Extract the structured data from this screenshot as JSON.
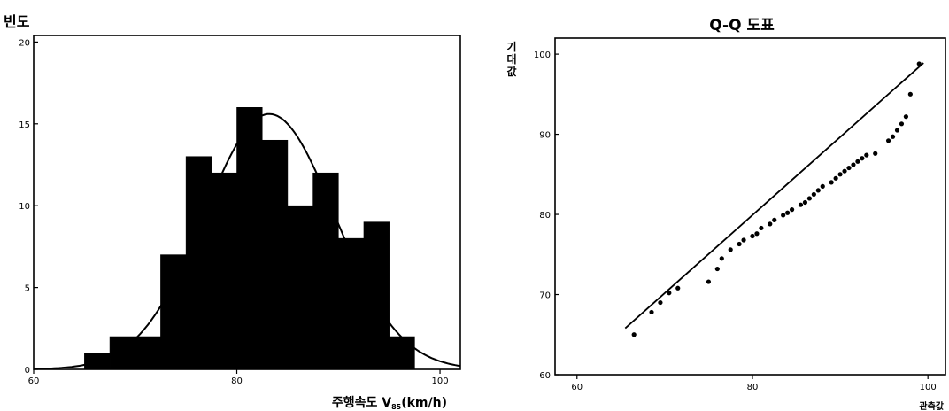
{
  "chart_data": [
    {
      "type": "bar",
      "ylabel": "빈도",
      "xlabel_main": "주행속도 V",
      "xlabel_sub": "85",
      "xlabel_unit": "(km/h)",
      "xlim": [
        60,
        102
      ],
      "ylim": [
        0,
        20.4
      ],
      "xticks": [
        60,
        80,
        100
      ],
      "yticks": [
        0,
        5,
        10,
        15,
        20
      ],
      "bin_edges": [
        65,
        67.5,
        70,
        72.5,
        75,
        77.5,
        80,
        82.5,
        85,
        87.5,
        90,
        92.5,
        95,
        97.5
      ],
      "values": [
        1,
        2,
        2,
        7,
        13,
        12,
        16,
        14,
        10,
        12,
        8,
        9,
        2
      ],
      "normal_curve": {
        "mean": 83.2,
        "sd": 6.4,
        "peak": 15.6
      },
      "grid": false
    },
    {
      "type": "scatter",
      "title": "Q-Q 도표",
      "ylabel": "기대값",
      "xlabel": "관측값",
      "xlim": [
        57.5,
        102
      ],
      "ylim": [
        60,
        102
      ],
      "xticks": [
        60,
        80,
        100
      ],
      "yticks": [
        60,
        70,
        80,
        90,
        100
      ],
      "reference_line": [
        [
          65.5,
          65.8
        ],
        [
          99.5,
          98.9
        ]
      ],
      "points": [
        [
          66.5,
          65.0
        ],
        [
          68.5,
          67.8
        ],
        [
          69.5,
          69.0
        ],
        [
          70.5,
          70.2
        ],
        [
          71.5,
          70.8
        ],
        [
          75.0,
          71.6
        ],
        [
          76.0,
          73.2
        ],
        [
          76.5,
          74.5
        ],
        [
          77.5,
          75.6
        ],
        [
          78.5,
          76.3
        ],
        [
          79.0,
          76.8
        ],
        [
          80.0,
          77.3
        ],
        [
          80.5,
          77.6
        ],
        [
          81.0,
          78.3
        ],
        [
          82.0,
          78.8
        ],
        [
          82.5,
          79.3
        ],
        [
          83.5,
          79.9
        ],
        [
          84.0,
          80.2
        ],
        [
          84.5,
          80.6
        ],
        [
          85.5,
          81.2
        ],
        [
          86.0,
          81.5
        ],
        [
          86.5,
          82.0
        ],
        [
          87.0,
          82.5
        ],
        [
          87.5,
          83.0
        ],
        [
          88.0,
          83.5
        ],
        [
          89.0,
          84.0
        ],
        [
          89.5,
          84.5
        ],
        [
          90.0,
          85.0
        ],
        [
          90.5,
          85.4
        ],
        [
          91.0,
          85.8
        ],
        [
          91.5,
          86.2
        ],
        [
          92.0,
          86.6
        ],
        [
          92.5,
          87.0
        ],
        [
          93.0,
          87.4
        ],
        [
          94.0,
          87.6
        ],
        [
          95.5,
          89.2
        ],
        [
          96.0,
          89.7
        ],
        [
          96.5,
          90.5
        ],
        [
          97.0,
          91.3
        ],
        [
          97.5,
          92.2
        ],
        [
          98.0,
          95.0
        ],
        [
          99.0,
          98.8
        ]
      ],
      "grid": false
    }
  ]
}
